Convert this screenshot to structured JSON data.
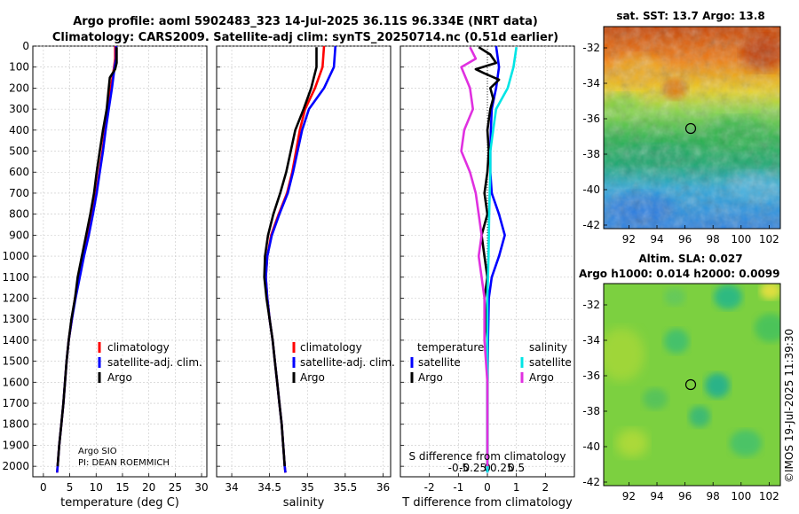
{
  "title": {
    "line1": "Argo profile: aoml 5902483_323 14-Jul-2025 36.11S 96.334E (NRT data)",
    "line2": "Climatology: CARS2009. Satellite-adj clim: synTS_20250714.nc (0.51d earlier)"
  },
  "colors": {
    "climatology": "#ff0000",
    "satellite": "#0000ff",
    "argo": "#000000",
    "s_satellite": "#00e5e5",
    "s_argo": "#e030e0"
  },
  "chart_data": [
    {
      "type": "line",
      "name": "temperature",
      "xlabel": "temperature (deg C)",
      "ylabel": "",
      "xlim": [
        -2,
        31
      ],
      "ylim": [
        2050,
        0
      ],
      "xticks": [
        0,
        5,
        10,
        15,
        20,
        25,
        30
      ],
      "yticks": [
        0,
        100,
        200,
        300,
        400,
        500,
        600,
        700,
        800,
        900,
        1000,
        1100,
        1200,
        1300,
        1400,
        1500,
        1600,
        1700,
        1800,
        1900,
        2000
      ],
      "legend": [
        "climatology",
        "satellite-adj. clim.",
        "Argo"
      ],
      "notes": [
        "Argo SIO",
        "PI: DEAN ROEMMICH"
      ],
      "series": [
        {
          "name": "climatology",
          "color": "#ff0000",
          "points": [
            [
              13.6,
              0
            ],
            [
              13.6,
              60
            ],
            [
              13.4,
              100
            ],
            [
              12.8,
              200
            ],
            [
              12.3,
              300
            ],
            [
              11.7,
              400
            ],
            [
              11.2,
              500
            ],
            [
              10.6,
              600
            ],
            [
              10.0,
              700
            ],
            [
              9.3,
              800
            ],
            [
              8.5,
              900
            ],
            [
              7.6,
              1000
            ],
            [
              6.8,
              1100
            ],
            [
              6.0,
              1200
            ],
            [
              5.4,
              1300
            ],
            [
              4.8,
              1400
            ],
            [
              4.4,
              1500
            ],
            [
              4.1,
              1600
            ],
            [
              3.8,
              1700
            ],
            [
              3.4,
              1800
            ],
            [
              3.0,
              1900
            ],
            [
              2.7,
              2000
            ],
            [
              2.6,
              2030
            ]
          ]
        },
        {
          "name": "satellite-adj. clim.",
          "color": "#0000ff",
          "points": [
            [
              13.8,
              0
            ],
            [
              13.8,
              60
            ],
            [
              13.5,
              100
            ],
            [
              13.0,
              200
            ],
            [
              12.4,
              300
            ],
            [
              11.8,
              400
            ],
            [
              11.3,
              500
            ],
            [
              10.7,
              600
            ],
            [
              10.1,
              700
            ],
            [
              9.4,
              800
            ],
            [
              8.6,
              900
            ],
            [
              7.7,
              1000
            ],
            [
              6.9,
              1100
            ],
            [
              6.1,
              1200
            ],
            [
              5.4,
              1300
            ],
            [
              4.8,
              1400
            ],
            [
              4.4,
              1500
            ],
            [
              4.1,
              1600
            ],
            [
              3.8,
              1700
            ],
            [
              3.4,
              1800
            ],
            [
              3.0,
              1900
            ],
            [
              2.7,
              2000
            ],
            [
              2.6,
              2030
            ]
          ]
        },
        {
          "name": "Argo",
          "color": "#000000",
          "points": [
            [
              13.9,
              5
            ],
            [
              13.9,
              80
            ],
            [
              13.6,
              110
            ],
            [
              12.6,
              150
            ],
            [
              12.4,
              200
            ],
            [
              12.0,
              300
            ],
            [
              11.3,
              400
            ],
            [
              10.7,
              500
            ],
            [
              10.1,
              600
            ],
            [
              9.6,
              700
            ],
            [
              8.9,
              800
            ],
            [
              8.1,
              900
            ],
            [
              7.3,
              1000
            ],
            [
              6.5,
              1100
            ],
            [
              6.0,
              1200
            ],
            [
              5.3,
              1300
            ],
            [
              4.8,
              1400
            ],
            [
              4.4,
              1500
            ],
            [
              4.1,
              1600
            ],
            [
              3.8,
              1700
            ],
            [
              3.4,
              1800
            ],
            [
              3.0,
              1900
            ],
            [
              2.7,
              2000
            ]
          ]
        }
      ]
    },
    {
      "type": "line",
      "name": "salinity",
      "xlabel": "salinity",
      "ylabel": "",
      "xlim": [
        33.8,
        36.1
      ],
      "ylim": [
        2050,
        0
      ],
      "xticks": [
        34,
        34.5,
        35,
        35.5,
        36
      ],
      "legend": [
        "climatology",
        "satellite-adj. clim.",
        "Argo"
      ],
      "series": [
        {
          "name": "climatology",
          "color": "#ff0000",
          "points": [
            [
              35.22,
              0
            ],
            [
              35.2,
              100
            ],
            [
              35.1,
              200
            ],
            [
              34.97,
              300
            ],
            [
              34.9,
              400
            ],
            [
              34.85,
              500
            ],
            [
              34.8,
              600
            ],
            [
              34.73,
              700
            ],
            [
              34.62,
              800
            ],
            [
              34.52,
              900
            ],
            [
              34.47,
              1000
            ],
            [
              34.45,
              1100
            ],
            [
              34.47,
              1200
            ],
            [
              34.5,
              1300
            ],
            [
              34.54,
              1400
            ],
            [
              34.57,
              1500
            ],
            [
              34.6,
              1600
            ],
            [
              34.63,
              1700
            ],
            [
              34.66,
              1800
            ],
            [
              34.68,
              1900
            ],
            [
              34.7,
              2000
            ],
            [
              34.71,
              2030
            ]
          ]
        },
        {
          "name": "satellite-adj. clim.",
          "color": "#0000ff",
          "points": [
            [
              35.37,
              0
            ],
            [
              35.35,
              100
            ],
            [
              35.22,
              200
            ],
            [
              35.02,
              300
            ],
            [
              34.93,
              400
            ],
            [
              34.87,
              500
            ],
            [
              34.81,
              600
            ],
            [
              34.74,
              700
            ],
            [
              34.63,
              800
            ],
            [
              34.53,
              900
            ],
            [
              34.47,
              1000
            ],
            [
              34.45,
              1100
            ],
            [
              34.47,
              1200
            ],
            [
              34.5,
              1300
            ],
            [
              34.54,
              1400
            ],
            [
              34.57,
              1500
            ],
            [
              34.6,
              1600
            ],
            [
              34.63,
              1700
            ],
            [
              34.66,
              1800
            ],
            [
              34.68,
              1900
            ],
            [
              34.7,
              2000
            ],
            [
              34.71,
              2030
            ]
          ]
        },
        {
          "name": "Argo",
          "color": "#000000",
          "points": [
            [
              35.12,
              5
            ],
            [
              35.12,
              100
            ],
            [
              35.05,
              200
            ],
            [
              34.95,
              300
            ],
            [
              34.84,
              400
            ],
            [
              34.78,
              500
            ],
            [
              34.72,
              600
            ],
            [
              34.64,
              700
            ],
            [
              34.55,
              800
            ],
            [
              34.48,
              900
            ],
            [
              34.44,
              1000
            ],
            [
              34.43,
              1100
            ],
            [
              34.46,
              1200
            ],
            [
              34.5,
              1300
            ],
            [
              34.54,
              1400
            ],
            [
              34.57,
              1500
            ],
            [
              34.6,
              1600
            ],
            [
              34.63,
              1700
            ],
            [
              34.66,
              1800
            ],
            [
              34.68,
              1900
            ],
            [
              34.7,
              2000
            ]
          ]
        }
      ]
    },
    {
      "type": "line",
      "name": "differences",
      "xlabel": "T difference from climatology",
      "xlabel_top": "S difference from climatology",
      "xlim": [
        -3,
        3
      ],
      "ylim": [
        2050,
        0
      ],
      "xticks": [
        -2,
        -1,
        0,
        1,
        2
      ],
      "xticks_s": [
        "-0.5",
        "-0.25",
        "0",
        "0.25",
        "0.5"
      ],
      "legend_left_title": "temperature",
      "legend_right_title": "salinity",
      "legend": [
        "satellite",
        "Argo",
        "satellite",
        "Argo"
      ],
      "series": [
        {
          "name": "T satellite",
          "color": "#0000ff",
          "points": [
            [
              0.3,
              0
            ],
            [
              0.4,
              100
            ],
            [
              0.3,
              200
            ],
            [
              0.15,
              300
            ],
            [
              0.12,
              400
            ],
            [
              0.1,
              500
            ],
            [
              0.1,
              600
            ],
            [
              0.15,
              700
            ],
            [
              0.4,
              800
            ],
            [
              0.6,
              900
            ],
            [
              0.4,
              1000
            ],
            [
              0.15,
              1100
            ],
            [
              0.05,
              1200
            ],
            [
              0.02,
              1400
            ],
            [
              0,
              1600
            ],
            [
              0,
              2030
            ]
          ]
        },
        {
          "name": "T Argo",
          "color": "#000000",
          "points": [
            [
              -0.3,
              5
            ],
            [
              0.1,
              40
            ],
            [
              0.3,
              80
            ],
            [
              -0.4,
              110
            ],
            [
              -0.1,
              130
            ],
            [
              0.4,
              160
            ],
            [
              0.1,
              200
            ],
            [
              0.2,
              250
            ],
            [
              0.1,
              300
            ],
            [
              0,
              400
            ],
            [
              0.05,
              500
            ],
            [
              0,
              600
            ],
            [
              -0.1,
              700
            ],
            [
              0,
              800
            ],
            [
              -0.2,
              900
            ],
            [
              -0.1,
              1000
            ],
            [
              0,
              1100
            ],
            [
              -0.1,
              1200
            ],
            [
              0,
              1400
            ],
            [
              0,
              2000
            ]
          ]
        },
        {
          "name": "S satellite",
          "color": "#00e5e5",
          "points": [
            [
              0.5,
              5
            ],
            [
              0.45,
              100
            ],
            [
              0.35,
              200
            ],
            [
              0.15,
              300
            ],
            [
              0.1,
              400
            ],
            [
              0.05,
              500
            ],
            [
              0.05,
              600
            ],
            [
              0.04,
              700
            ],
            [
              0.03,
              800
            ],
            [
              0.02,
              1000
            ],
            [
              0,
              1200
            ],
            [
              0,
              1600
            ],
            [
              0,
              2030
            ]
          ]
        },
        {
          "name": "S Argo",
          "color": "#e030e0",
          "points": [
            [
              -0.3,
              5
            ],
            [
              -0.2,
              60
            ],
            [
              -0.45,
              100
            ],
            [
              -0.3,
              200
            ],
            [
              -0.25,
              300
            ],
            [
              -0.4,
              400
            ],
            [
              -0.45,
              500
            ],
            [
              -0.3,
              600
            ],
            [
              -0.2,
              700
            ],
            [
              -0.15,
              800
            ],
            [
              -0.1,
              900
            ],
            [
              -0.15,
              1000
            ],
            [
              -0.1,
              1100
            ],
            [
              -0.05,
              1200
            ],
            [
              -0.05,
              1400
            ],
            [
              0,
              1600
            ],
            [
              0,
              2000
            ]
          ]
        }
      ]
    },
    {
      "type": "heatmap",
      "name": "sst-map",
      "title": "sat. SST: 13.7 Argo: 13.8",
      "xlim": [
        90.2,
        102.8
      ],
      "ylim": [
        -42.2,
        -30.8
      ],
      "xticks": [
        92,
        94,
        96,
        98,
        100,
        102
      ],
      "yticks": [
        -32,
        -34,
        -36,
        -38,
        -40,
        -42
      ],
      "argo_position": [
        96.33,
        -36.11
      ]
    },
    {
      "type": "heatmap",
      "name": "sla-map",
      "title": "Altim. SLA: 0.027",
      "subtitle": "Argo h1000: 0.014 h2000: 0.0099",
      "xlim": [
        90.2,
        102.8
      ],
      "ylim": [
        -42.2,
        -30.8
      ],
      "xticks": [
        92,
        94,
        96,
        98,
        100,
        102
      ],
      "yticks": [
        -32,
        -34,
        -36,
        -38,
        -40,
        -42
      ],
      "argo_position": [
        96.33,
        -36.11
      ]
    }
  ],
  "credit": "©IMOS 19-Jul-2025 11:39:30"
}
